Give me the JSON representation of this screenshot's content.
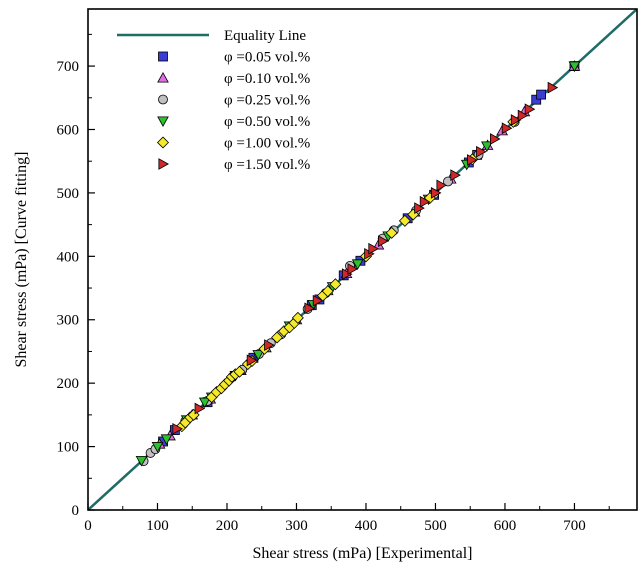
{
  "chart_data": {
    "type": "scatter",
    "xlabel": "Shear stress (mPa) [Experimental]",
    "ylabel": "Shear stress (mPa) [Curve fitting]",
    "xlim": [
      0,
      790
    ],
    "ylim": [
      0,
      790
    ],
    "xticks": [
      0,
      100,
      200,
      300,
      400,
      500,
      600,
      700
    ],
    "yticks": [
      0,
      100,
      200,
      300,
      400,
      500,
      600,
      700
    ],
    "grid": false,
    "legend_position": "top-left",
    "reference_line": {
      "name": "Equality Line",
      "color": "#1f6b66",
      "points": [
        [
          0,
          0
        ],
        [
          790,
          790
        ]
      ]
    },
    "series": [
      {
        "name": "φ =0.05 vol.%",
        "marker": "square",
        "color": "#3b3bd6",
        "points": [
          [
            108,
            108
          ],
          [
            125,
            126
          ],
          [
            172,
            170
          ],
          [
            238,
            240
          ],
          [
            322,
            323
          ],
          [
            333,
            332
          ],
          [
            368,
            370
          ],
          [
            392,
            393
          ],
          [
            460,
            460
          ],
          [
            498,
            497
          ],
          [
            548,
            548
          ],
          [
            560,
            560
          ],
          [
            645,
            647
          ],
          [
            652,
            655
          ],
          [
            700,
            700
          ]
        ]
      },
      {
        "name": "φ =0.10 vol.%",
        "marker": "triangle-up",
        "color": "#e06ee0",
        "points": [
          [
            103,
            104
          ],
          [
            118,
            117
          ],
          [
            150,
            150
          ],
          [
            176,
            175
          ],
          [
            220,
            220
          ],
          [
            256,
            256
          ],
          [
            300,
            300
          ],
          [
            345,
            346
          ],
          [
            372,
            373
          ],
          [
            418,
            418
          ],
          [
            470,
            470
          ],
          [
            522,
            522
          ],
          [
            575,
            575
          ],
          [
            596,
            598
          ],
          [
            628,
            628
          ],
          [
            700,
            700
          ]
        ]
      },
      {
        "name": "φ =0.25 vol.%",
        "marker": "circle",
        "color": "#c0c0c0",
        "points": [
          [
            80,
            77
          ],
          [
            90,
            90
          ],
          [
            97,
            96
          ],
          [
            140,
            140
          ],
          [
            172,
            172
          ],
          [
            208,
            210
          ],
          [
            222,
            221
          ],
          [
            246,
            246
          ],
          [
            263,
            263
          ],
          [
            278,
            277
          ],
          [
            316,
            317
          ],
          [
            342,
            342
          ],
          [
            377,
            385
          ],
          [
            424,
            428
          ],
          [
            440,
            441
          ],
          [
            472,
            472
          ],
          [
            498,
            498
          ],
          [
            518,
            518
          ],
          [
            562,
            560
          ],
          [
            614,
            612
          ]
        ]
      },
      {
        "name": "φ =0.50 vol.%",
        "marker": "triangle-down",
        "color": "#2cc02c",
        "points": [
          [
            77,
            78
          ],
          [
            100,
            100
          ],
          [
            113,
            112
          ],
          [
            142,
            142
          ],
          [
            168,
            170
          ],
          [
            178,
            178
          ],
          [
            212,
            212
          ],
          [
            245,
            245
          ],
          [
            290,
            290
          ],
          [
            324,
            324
          ],
          [
            352,
            352
          ],
          [
            388,
            388
          ],
          [
            432,
            432
          ],
          [
            490,
            490
          ],
          [
            545,
            545
          ],
          [
            574,
            574
          ],
          [
            700,
            700
          ]
        ]
      },
      {
        "name": "φ =1.00 vol.%",
        "marker": "diamond",
        "color": "#f5ea2a",
        "points": [
          [
            135,
            132
          ],
          [
            140,
            138
          ],
          [
            147,
            146
          ],
          [
            152,
            150
          ],
          [
            178,
            178
          ],
          [
            185,
            186
          ],
          [
            192,
            192
          ],
          [
            197,
            198
          ],
          [
            203,
            204
          ],
          [
            207,
            210
          ],
          [
            212,
            214
          ],
          [
            218,
            218
          ],
          [
            230,
            230
          ],
          [
            236,
            235
          ],
          [
            254,
            254
          ],
          [
            272,
            272
          ],
          [
            282,
            282
          ],
          [
            290,
            288
          ],
          [
            297,
            295
          ],
          [
            302,
            303
          ],
          [
            338,
            338
          ],
          [
            345,
            345
          ],
          [
            356,
            356
          ],
          [
            400,
            400
          ],
          [
            437,
            437
          ],
          [
            456,
            456
          ],
          [
            468,
            466
          ],
          [
            492,
            492
          ],
          [
            553,
            553
          ],
          [
            612,
            612
          ]
        ]
      },
      {
        "name": "φ =1.50 vol.%",
        "marker": "triangle-right",
        "color": "#d02828",
        "points": [
          [
            128,
            128
          ],
          [
            160,
            160
          ],
          [
            235,
            236
          ],
          [
            260,
            260
          ],
          [
            318,
            318
          ],
          [
            330,
            330
          ],
          [
            372,
            372
          ],
          [
            380,
            380
          ],
          [
            404,
            404
          ],
          [
            410,
            412
          ],
          [
            424,
            424
          ],
          [
            476,
            476
          ],
          [
            484,
            486
          ],
          [
            500,
            500
          ],
          [
            508,
            512
          ],
          [
            528,
            528
          ],
          [
            552,
            552
          ],
          [
            565,
            565
          ],
          [
            585,
            585
          ],
          [
            602,
            602
          ],
          [
            615,
            615
          ],
          [
            625,
            622
          ],
          [
            635,
            632
          ],
          [
            668,
            666
          ]
        ]
      }
    ]
  }
}
